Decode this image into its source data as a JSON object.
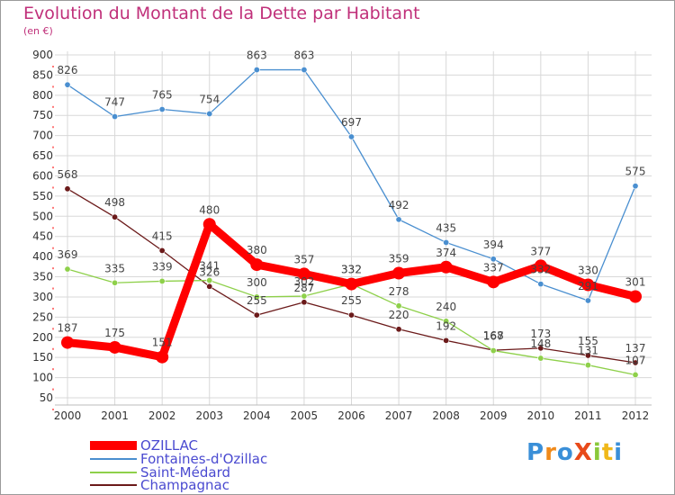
{
  "title": "Evolution du Montant de la Dette par Habitant",
  "subtitle": "(en €)",
  "brand": "ProXiti",
  "colors": {
    "title": "#c0307a",
    "legend_text": "#4a4ad0",
    "grid": "#d8d8d8",
    "axis_text": "#333333"
  },
  "chart_data": {
    "type": "line",
    "title": "Evolution du Montant de la Dette par Habitant",
    "subtitle": "(en €)",
    "xlabel": "",
    "ylabel": "",
    "x": [
      "2000",
      "2001",
      "2002",
      "2003",
      "2004",
      "2005",
      "2006",
      "2007",
      "2008",
      "2009",
      "2010",
      "2011",
      "2012"
    ],
    "ylim": [
      50,
      900
    ],
    "yticks": [
      50,
      100,
      150,
      200,
      250,
      300,
      350,
      400,
      450,
      500,
      550,
      600,
      650,
      700,
      750,
      800,
      850,
      900
    ],
    "grid": true,
    "legend_position": "bottom-left",
    "series": [
      {
        "name": "OZILLAC",
        "color": "#ff0000",
        "values": [
          187,
          175,
          151,
          480,
          380,
          357,
          332,
          359,
          374,
          337,
          377,
          330,
          301
        ]
      },
      {
        "name": "Fontaines-d'Ozillac",
        "color": "#4a8fd0",
        "values": [
          826,
          747,
          765,
          754,
          863,
          863,
          697,
          492,
          435,
          394,
          332,
          291,
          575
        ]
      },
      {
        "name": "Saint-Médard",
        "color": "#8ed04a",
        "values": [
          369,
          335,
          339,
          341,
          300,
          302,
          332,
          278,
          240,
          167,
          148,
          131,
          107
        ]
      },
      {
        "name": "Champagnac",
        "color": "#6b1a1a",
        "values": [
          568,
          498,
          415,
          326,
          255,
          287,
          255,
          220,
          192,
          168,
          173,
          155,
          137
        ]
      }
    ],
    "value_labels": [
      [
        "187",
        "175",
        "151",
        "480",
        "380",
        "357",
        "332",
        "359",
        "374",
        "337",
        "377",
        "330",
        "301"
      ],
      [
        "826",
        "747",
        "765",
        "754",
        "863",
        "863",
        "697",
        "492",
        "435",
        "394",
        "332",
        "291",
        "575"
      ],
      [
        "369",
        "335",
        "339",
        "341",
        "300",
        "302",
        "332",
        "278",
        "240",
        "167",
        "148",
        "131",
        "107"
      ],
      [
        "568",
        "498",
        "415",
        "326",
        "255",
        "287",
        "255",
        "220",
        "192",
        "168",
        "173",
        "155",
        "137"
      ]
    ]
  }
}
